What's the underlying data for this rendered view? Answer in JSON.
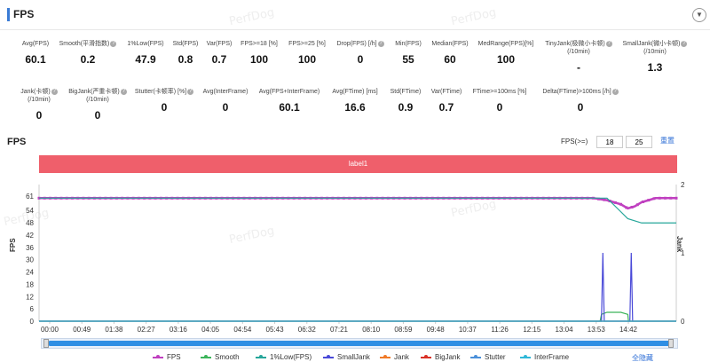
{
  "header": {
    "title": "FPS",
    "collapse_icon": "chevron-down-icon"
  },
  "watermark": "PerfDog",
  "metrics_row1": [
    {
      "label": "Avg(FPS)",
      "value": "60.1",
      "info": false
    },
    {
      "label": "Smooth(平滑指数)",
      "value": "0.2",
      "info": true
    },
    {
      "label": "1%Low(FPS)",
      "value": "47.9",
      "info": false
    },
    {
      "label": "Std(FPS)",
      "value": "0.8",
      "info": false
    },
    {
      "label": "Var(FPS)",
      "value": "0.7",
      "info": false
    },
    {
      "label": "FPS>=18 [%]",
      "value": "100",
      "info": false
    },
    {
      "label": "FPS>=25 [%]",
      "value": "100",
      "info": false
    },
    {
      "label": "Drop(FPS) [/h]",
      "value": "0",
      "info": true
    },
    {
      "label": "Min(FPS)",
      "value": "55",
      "info": false
    },
    {
      "label": "Median(FPS)",
      "value": "60",
      "info": false
    },
    {
      "label": "MedRange(FPS)[%]",
      "value": "100",
      "info": false
    },
    {
      "label": "TinyJank(极微小卡顿)\n(/10min)",
      "value": "-",
      "info": true
    },
    {
      "label": "SmallJank(微小卡顿)\n(/10min)",
      "value": "1.3",
      "info": true
    }
  ],
  "metrics_row2": [
    {
      "label": "Jank(卡顿)\n(/10min)",
      "value": "0",
      "info": true
    },
    {
      "label": "BigJank(严重卡顿)\n(/10min)",
      "value": "0",
      "info": true
    },
    {
      "label": "Stutter(卡顿率) [%]",
      "value": "0",
      "info": true
    },
    {
      "label": "Avg(InterFrame)",
      "value": "0",
      "info": false
    },
    {
      "label": "Avg(FPS+InterFrame)",
      "value": "60.1",
      "info": false
    },
    {
      "label": "Avg(FTime) [ms]",
      "value": "16.6",
      "info": false
    },
    {
      "label": "Std(FTime)",
      "value": "0.9",
      "info": false
    },
    {
      "label": "Var(FTime)",
      "value": "0.7",
      "info": false
    },
    {
      "label": "FTime>=100ms [%]",
      "value": "0",
      "info": false
    },
    {
      "label": "Delta(FTime)>100ms [/h]",
      "value": "0",
      "info": true
    }
  ],
  "chart_section": {
    "title": "FPS",
    "threshold_label": "FPS(>=)",
    "threshold_1": "18",
    "threshold_2": "25",
    "reset_label": "重置",
    "label_bar": "label1",
    "left_axis_title": "FPS",
    "right_axis_title": "Jank",
    "hide_all_label": "全隐藏"
  },
  "chart_data": {
    "type": "line",
    "x_ticks": [
      "00:00",
      "00:49",
      "01:38",
      "02:27",
      "03:16",
      "04:05",
      "04:54",
      "05:43",
      "06:32",
      "07:21",
      "08:10",
      "08:59",
      "09:48",
      "10:37",
      "11:26",
      "12:15",
      "13:04",
      "13:53",
      "14:42"
    ],
    "y_left_ticks": [
      0,
      6,
      12,
      18,
      24,
      30,
      36,
      42,
      48,
      54,
      61
    ],
    "y_right_ticks": [
      0,
      1,
      2
    ],
    "ylim_left": [
      0,
      61
    ],
    "ylim_right": [
      0,
      2
    ],
    "xlim_seconds": [
      0,
      920
    ],
    "grid": false,
    "legend_position": "bottom",
    "series": [
      {
        "name": "FPS",
        "color": "#c040c0",
        "axis": "left",
        "x": [
          0,
          40,
          120,
          240,
          400,
          560,
          720,
          800,
          820,
          840,
          850,
          860,
          870,
          880,
          890,
          900,
          920
        ],
        "y": [
          60,
          60,
          60,
          60,
          60,
          60,
          60,
          60,
          59,
          57,
          55,
          56,
          58,
          59,
          60,
          60,
          60
        ]
      },
      {
        "name": "Smooth",
        "color": "#3cb45a",
        "axis": "right",
        "x": [
          0,
          810,
          812,
          820,
          840,
          850,
          851,
          852,
          920
        ],
        "y": [
          0,
          0,
          0.1,
          0.13,
          0.13,
          0.1,
          0,
          0,
          0
        ]
      },
      {
        "name": "1%Low(FPS)",
        "color": "#26a69a",
        "axis": "left",
        "x": [
          0,
          820,
          835,
          850,
          870,
          920
        ],
        "y": [
          60,
          60,
          55,
          50,
          47.9,
          47.9
        ]
      },
      {
        "name": "SmallJank",
        "color": "#4a4ad8",
        "axis": "right",
        "x": [
          0,
          812,
          814,
          816,
          818,
          853,
          855,
          857,
          920
        ],
        "y": [
          0,
          0,
          1,
          0,
          0,
          0,
          1,
          0,
          0
        ]
      },
      {
        "name": "Jank",
        "color": "#f07a28",
        "axis": "right",
        "x": [
          0,
          920
        ],
        "y": [
          0,
          0
        ]
      },
      {
        "name": "BigJank",
        "color": "#d93025",
        "axis": "right",
        "x": [
          0,
          920
        ],
        "y": [
          0,
          0
        ]
      },
      {
        "name": "Stutter",
        "color": "#4a90d9",
        "axis": "right",
        "x": [
          0,
          920
        ],
        "y": [
          0,
          0
        ]
      },
      {
        "name": "InterFrame",
        "color": "#30b8d8",
        "axis": "left",
        "x": [
          0,
          920
        ],
        "y": [
          0,
          0
        ]
      }
    ]
  }
}
